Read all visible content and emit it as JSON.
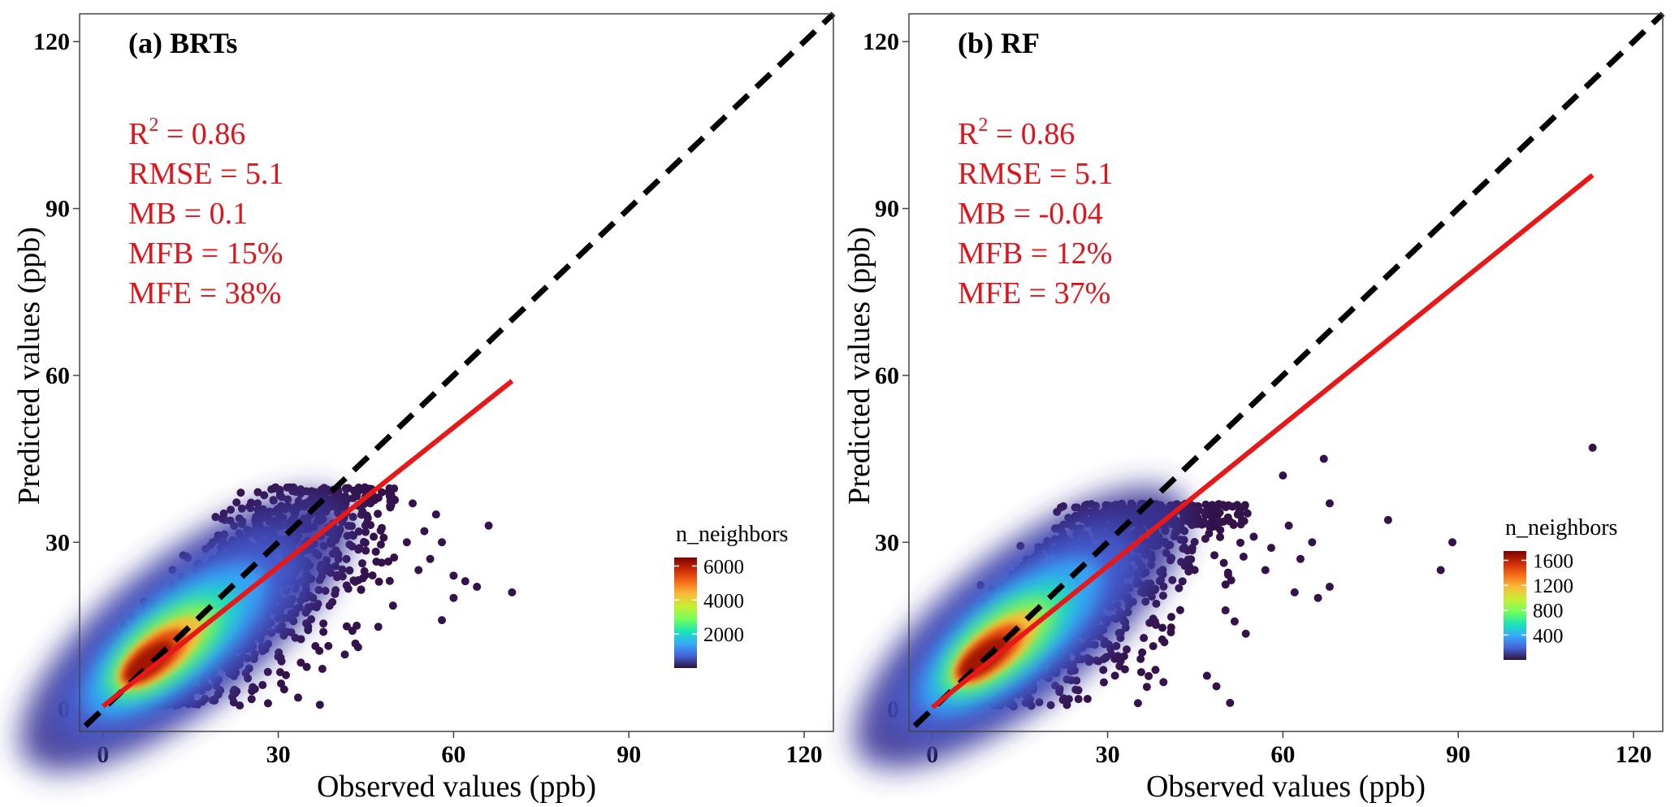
{
  "chart_data": [
    {
      "type": "scatter",
      "subtype": "density-colored scatter with 1:1 line and linear fit",
      "title": "(a) BRTs",
      "xlabel": "Observed values (ppb)",
      "ylabel": "Predicted values (ppb)",
      "xlim": [
        -4,
        125
      ],
      "ylim": [
        -4,
        125
      ],
      "xticks": [
        0,
        30,
        60,
        90,
        120
      ],
      "yticks": [
        0,
        30,
        60,
        90,
        120
      ],
      "grid": false,
      "stats": [
        {
          "label": "R",
          "sup": "2",
          "rest": " = 0.86"
        },
        {
          "label": "RMSE = 5.1",
          "sup": "",
          "rest": ""
        },
        {
          "label": "MB = 0.1",
          "sup": "",
          "rest": ""
        },
        {
          "label": "MFB = 15%",
          "sup": "",
          "rest": ""
        },
        {
          "label": "MFE = 38%",
          "sup": "",
          "rest": ""
        }
      ],
      "reference_line": {
        "x": [
          -3,
          125
        ],
        "y": [
          -3,
          125
        ],
        "color": "#000000",
        "style": "dashed"
      },
      "fit_line": {
        "x": [
          0,
          70
        ],
        "y": [
          0.5,
          59
        ],
        "color": "#e81818"
      },
      "density_cloud": {
        "x_range": [
          0,
          50
        ],
        "y_range": [
          1,
          40
        ],
        "core": [
          7,
          8
        ]
      },
      "outlier_points": [
        [
          53,
          37
        ],
        [
          55,
          32
        ],
        [
          57,
          35
        ],
        [
          58,
          30
        ],
        [
          60,
          24
        ],
        [
          60,
          20
        ],
        [
          62,
          23
        ],
        [
          64,
          22
        ],
        [
          66,
          33
        ],
        [
          70,
          21
        ],
        [
          58,
          16
        ],
        [
          56,
          27
        ],
        [
          52,
          30
        ],
        [
          54,
          25
        ]
      ],
      "legend": {
        "title": "n_neighbors",
        "ticks": [
          2000,
          4000,
          6000
        ],
        "min": 0,
        "max": 6500,
        "position": "bottom-right"
      }
    },
    {
      "type": "scatter",
      "subtype": "density-colored scatter with 1:1 line and linear fit",
      "title": "(b) RF",
      "xlabel": "Observed values (ppb)",
      "ylabel": "Predicted values (ppb)",
      "xlim": [
        -4,
        125
      ],
      "ylim": [
        -4,
        125
      ],
      "xticks": [
        0,
        30,
        60,
        90,
        120
      ],
      "yticks": [
        0,
        30,
        60,
        90,
        120
      ],
      "grid": false,
      "stats": [
        {
          "label": "R",
          "sup": "2",
          "rest": " = 0.86"
        },
        {
          "label": "RMSE = 5.1",
          "sup": "",
          "rest": ""
        },
        {
          "label": "MB = -0.04",
          "sup": "",
          "rest": ""
        },
        {
          "label": "MFB = 12%",
          "sup": "",
          "rest": ""
        },
        {
          "label": "MFE = 37%",
          "sup": "",
          "rest": ""
        }
      ],
      "reference_line": {
        "x": [
          -3,
          125
        ],
        "y": [
          -3,
          125
        ],
        "color": "#000000",
        "style": "dashed"
      },
      "fit_line": {
        "x": [
          0,
          113
        ],
        "y": [
          0.3,
          96
        ],
        "color": "#e81818"
      },
      "density_cloud": {
        "x_range": [
          0,
          54
        ],
        "y_range": [
          0,
          37
        ],
        "core": [
          8,
          10
        ]
      },
      "outlier_points": [
        [
          113,
          47
        ],
        [
          89,
          30
        ],
        [
          87,
          25
        ],
        [
          78,
          34
        ],
        [
          67,
          45
        ],
        [
          68,
          37
        ],
        [
          68,
          22
        ],
        [
          66,
          20
        ],
        [
          65,
          30
        ],
        [
          60,
          42
        ],
        [
          63,
          27
        ],
        [
          62,
          21
        ],
        [
          58,
          29
        ],
        [
          55,
          31
        ],
        [
          47,
          6
        ],
        [
          53,
          34
        ],
        [
          61,
          33
        ],
        [
          57,
          25
        ]
      ],
      "legend": {
        "title": "n_neighbors",
        "ticks": [
          400,
          800,
          1200,
          1600
        ],
        "min": 0,
        "max": 1750,
        "position": "bottom-right"
      }
    }
  ],
  "colors": {
    "stats_text": "#e0151b",
    "fit_line": "#e81818",
    "reference_line": "#000000",
    "colormap": [
      "#30123b",
      "#4662d7",
      "#36aaf9",
      "#1ae4b6",
      "#72fe5e",
      "#c8ef34",
      "#faba39",
      "#f66b19",
      "#ca2a04",
      "#7a0403"
    ]
  }
}
